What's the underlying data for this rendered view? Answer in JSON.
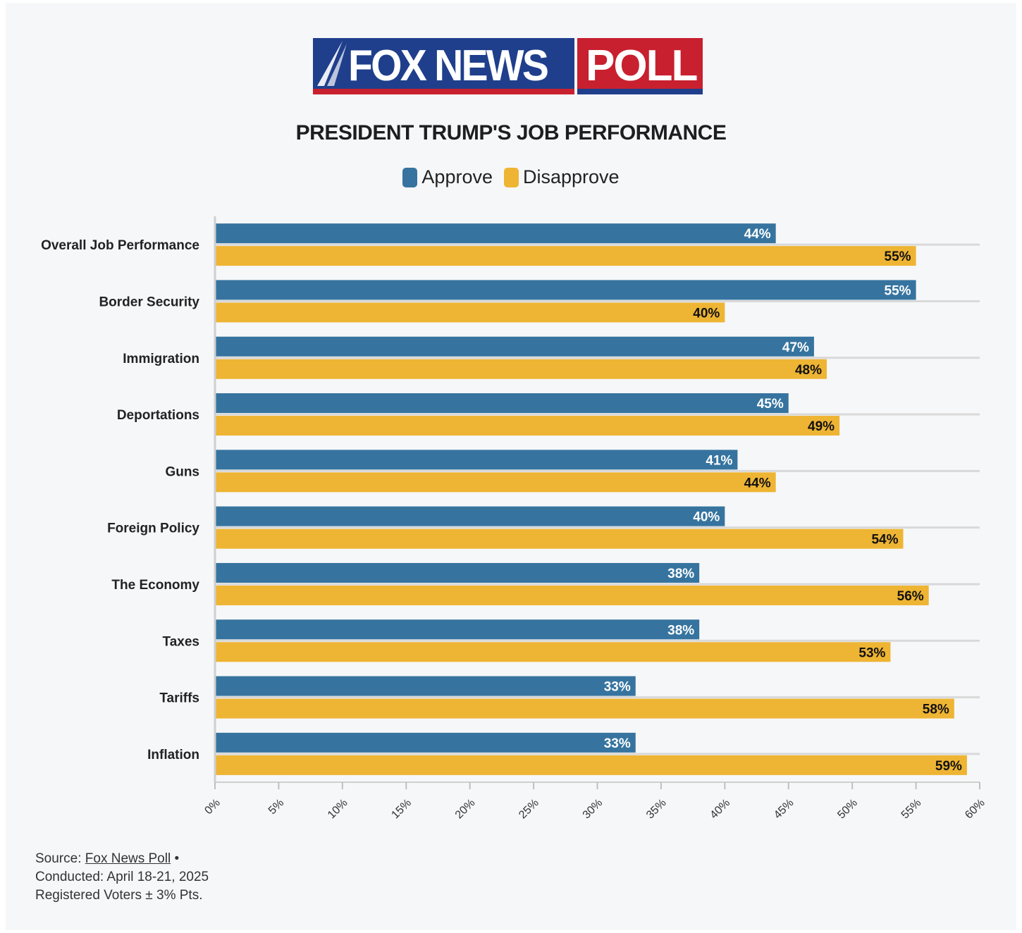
{
  "logo": {
    "fox": "FOX NEWS",
    "poll": "POLL"
  },
  "colors": {
    "approve": "#36749f",
    "disapprove": "#eeb433",
    "grid": "#d9d9d9"
  },
  "chart_data": {
    "type": "bar",
    "orientation": "horizontal",
    "title": "PRESIDENT TRUMP'S JOB PERFORMANCE",
    "categories": [
      "Overall Job Performance",
      "Border Security",
      "Immigration",
      "Deportations",
      "Guns",
      "Foreign Policy",
      "The Economy",
      "Taxes",
      "Tariffs",
      "Inflation"
    ],
    "series": [
      {
        "name": "Approve",
        "values": [
          44,
          55,
          47,
          45,
          41,
          40,
          38,
          38,
          33,
          33
        ]
      },
      {
        "name": "Disapprove",
        "values": [
          55,
          40,
          48,
          49,
          44,
          54,
          56,
          53,
          58,
          59
        ]
      }
    ],
    "xlim": [
      0,
      60
    ],
    "xticks": [
      "0%",
      "5%",
      "10%",
      "15%",
      "20%",
      "25%",
      "30%",
      "35%",
      "40%",
      "45%",
      "50%",
      "55%",
      "60%"
    ],
    "legend": "top-center",
    "value_suffix": "%"
  },
  "source": {
    "prefix": "Source: ",
    "link": "Fox News Poll",
    "bullet": " •",
    "conducted": "Conducted: April 18-21, 2025",
    "sample": "Registered Voters ± 3% Pts."
  }
}
